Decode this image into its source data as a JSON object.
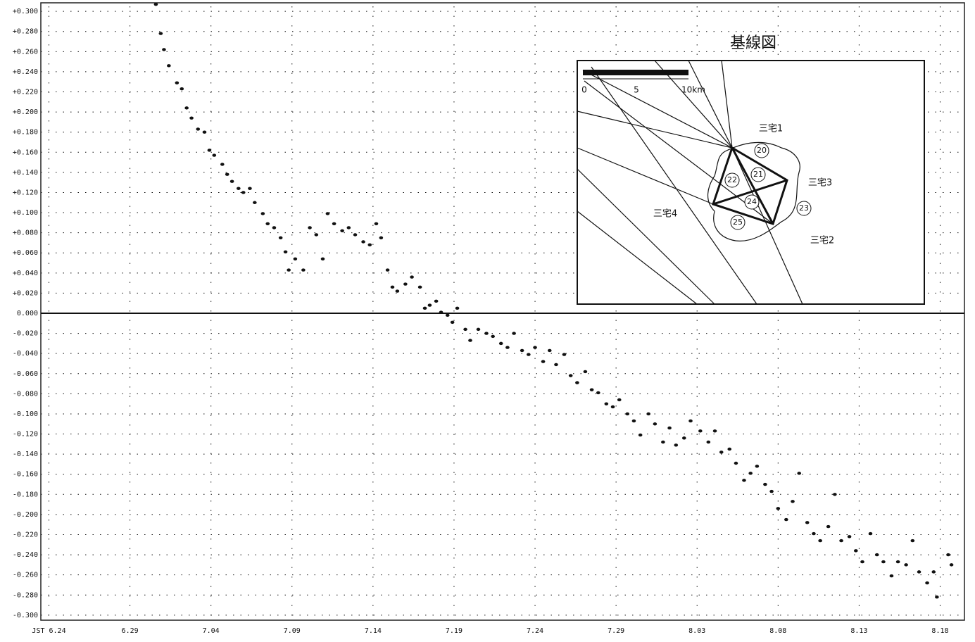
{
  "chart_data": {
    "type": "scatter",
    "color": "#111",
    "x": [
      6.6,
      6.9,
      7.1,
      7.4,
      7.9,
      8.2,
      8.5,
      8.8,
      9.2,
      9.6,
      9.9,
      10.2,
      10.7,
      11.0,
      11.3,
      11.7,
      12.0,
      12.4,
      12.7,
      13.2,
      13.5,
      13.9,
      14.3,
      14.6,
      14.8,
      15.2,
      15.7,
      16.1,
      16.5,
      16.9,
      17.2,
      17.6,
      18.1,
      18.5,
      18.9,
      19.4,
      19.8,
      20.2,
      20.5,
      20.9,
      21.2,
      21.5,
      22.0,
      22.4,
      22.9,
      23.2,
      23.5,
      23.9,
      24.2,
      24.6,
      24.9,
      25.2,
      25.7,
      26.0,
      26.5,
      27.0,
      27.4,
      27.9,
      28.3,
      28.7,
      29.2,
      29.6,
      30.0,
      30.5,
      30.9,
      31.3,
      31.8,
      32.2,
      32.6,
      33.1,
      33.5,
      33.9,
      34.4,
      34.8,
      35.2,
      35.7,
      36.1,
      36.5,
      37.0,
      37.4,
      37.9,
      38.3,
      38.7,
      39.2,
      39.6,
      40.2,
      40.7,
      41.1,
      41.5,
      42.0,
      42.4,
      42.9,
      43.3,
      43.7,
      44.2,
      44.6,
      45.0,
      45.5,
      45.9,
      46.3,
      46.8,
      47.2,
      47.6,
      48.1,
      48.5,
      48.9,
      49.4,
      49.8,
      50.2,
      50.7,
      51.1,
      51.5,
      52.0,
      52.4,
      52.9,
      53.3,
      53.7,
      54.2,
      54.6,
      54.8,
      55.5,
      55.7
    ],
    "values": [
      0.307,
      0.278,
      0.262,
      0.246,
      0.229,
      0.223,
      0.204,
      0.194,
      0.183,
      0.18,
      0.162,
      0.157,
      0.148,
      0.138,
      0.131,
      0.124,
      0.12,
      0.124,
      0.11,
      0.099,
      0.089,
      0.085,
      0.075,
      0.061,
      0.043,
      0.054,
      0.043,
      0.085,
      0.078,
      0.054,
      0.099,
      0.089,
      0.082,
      0.085,
      0.078,
      0.071,
      0.068,
      0.089,
      0.075,
      0.043,
      0.026,
      0.022,
      0.029,
      0.036,
      0.026,
      0.005,
      0.008,
      0.012,
      0.001,
      -0.002,
      -0.009,
      0.005,
      -0.016,
      -0.027,
      -0.016,
      -0.02,
      -0.023,
      -0.03,
      -0.034,
      -0.02,
      -0.037,
      -0.041,
      -0.034,
      -0.048,
      -0.037,
      -0.051,
      -0.041,
      -0.062,
      -0.069,
      -0.058,
      -0.076,
      -0.079,
      -0.09,
      -0.093,
      -0.086,
      -0.1,
      -0.107,
      -0.121,
      -0.1,
      -0.11,
      -0.128,
      -0.114,
      -0.131,
      -0.124,
      -0.107,
      -0.117,
      -0.128,
      -0.117,
      -0.138,
      -0.135,
      -0.149,
      -0.166,
      -0.159,
      -0.152,
      -0.17,
      -0.177,
      -0.194,
      -0.205,
      -0.187,
      -0.159,
      -0.208,
      -0.219,
      -0.226,
      -0.212,
      -0.18,
      -0.226,
      -0.222,
      -0.236,
      -0.247,
      -0.219,
      -0.24,
      -0.247,
      -0.261,
      -0.247,
      -0.25,
      -0.226,
      -0.257,
      -0.268,
      -0.257,
      -0.282,
      -0.24,
      -0.25
    ],
    "xlim": [
      -0.5,
      56.5
    ],
    "xticks": [
      {
        "value": 0,
        "label": "JST 6.24"
      },
      {
        "value": 5,
        "label": "6.29"
      },
      {
        "value": 10,
        "label": "7.04"
      },
      {
        "value": 15,
        "label": "7.09"
      },
      {
        "value": 20,
        "label": "7.14"
      },
      {
        "value": 25,
        "label": "7.19"
      },
      {
        "value": 30,
        "label": "7.24"
      },
      {
        "value": 35,
        "label": "7.29"
      },
      {
        "value": 40,
        "label": "8.03"
      },
      {
        "value": 45,
        "label": "8.08"
      },
      {
        "value": 50,
        "label": "8.13"
      },
      {
        "value": 55,
        "label": "8.18"
      }
    ],
    "ylim": [
      -0.305,
      0.305
    ],
    "yticks": [
      {
        "value": 0.3,
        "label": "+0.300"
      },
      {
        "value": 0.28,
        "label": "+0.280"
      },
      {
        "value": 0.26,
        "label": "+0.260"
      },
      {
        "value": 0.24,
        "label": "+0.240"
      },
      {
        "value": 0.22,
        "label": "+0.220"
      },
      {
        "value": 0.2,
        "label": "+0.200"
      },
      {
        "value": 0.18,
        "label": "+0.180"
      },
      {
        "value": 0.16,
        "label": "+0.160"
      },
      {
        "value": 0.14,
        "label": "+0.140"
      },
      {
        "value": 0.12,
        "label": "+0.120"
      },
      {
        "value": 0.1,
        "label": "+0.100"
      },
      {
        "value": 0.08,
        "label": "+0.080"
      },
      {
        "value": 0.06,
        "label": "+0.060"
      },
      {
        "value": 0.04,
        "label": "+0.040"
      },
      {
        "value": 0.02,
        "label": "+0.020"
      },
      {
        "value": 0,
        "label": "0.000"
      },
      {
        "value": -0.02,
        "label": "-0.020"
      },
      {
        "value": -0.04,
        "label": "-0.040"
      },
      {
        "value": -0.06,
        "label": "-0.060"
      },
      {
        "value": -0.08,
        "label": "-0.080"
      },
      {
        "value": -0.1,
        "label": "-0.100"
      },
      {
        "value": -0.12,
        "label": "-0.120"
      },
      {
        "value": -0.14,
        "label": "-0.140"
      },
      {
        "value": -0.16,
        "label": "-0.160"
      },
      {
        "value": -0.18,
        "label": "-0.180"
      },
      {
        "value": -0.2,
        "label": "-0.200"
      },
      {
        "value": -0.22,
        "label": "-0.220"
      },
      {
        "value": -0.24,
        "label": "-0.240"
      },
      {
        "value": -0.26,
        "label": "-0.260"
      },
      {
        "value": -0.28,
        "label": "-0.280"
      },
      {
        "value": -0.3,
        "label": "-0.300"
      }
    ],
    "grid": true
  },
  "inset": {
    "title": "基線図",
    "scale_labels": [
      "0",
      "5",
      "10km"
    ],
    "stations": [
      "三宅1",
      "三宅3",
      "三宅2",
      "三宅4"
    ],
    "baselines": [
      "20",
      "21",
      "22",
      "23",
      "24",
      "25"
    ]
  }
}
